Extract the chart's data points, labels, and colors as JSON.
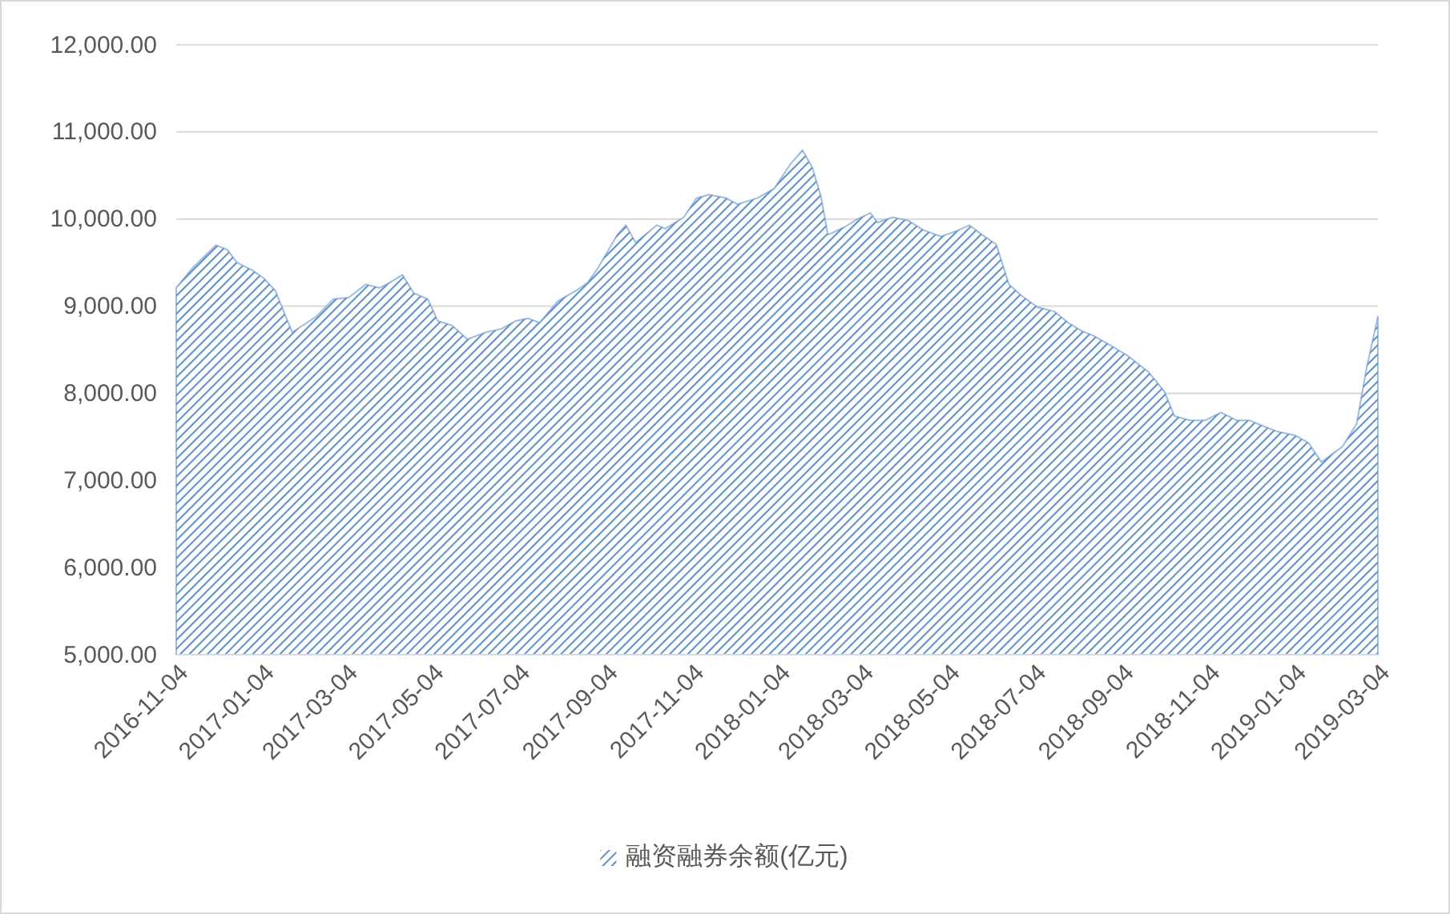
{
  "chart_data": {
    "type": "area",
    "x": [
      "2016-11-04",
      "2016-11-15",
      "2016-12-02",
      "2016-12-10",
      "2016-12-17",
      "2016-12-28",
      "2017-01-05",
      "2017-01-13",
      "2017-01-25",
      "2017-02-11",
      "2017-02-23",
      "2017-03-06",
      "2017-03-18",
      "2017-03-28",
      "2017-04-04",
      "2017-04-13",
      "2017-04-21",
      "2017-05-01",
      "2017-05-08",
      "2017-05-18",
      "2017-05-29",
      "2017-06-11",
      "2017-06-22",
      "2017-07-02",
      "2017-07-11",
      "2017-07-19",
      "2017-08-01",
      "2017-08-14",
      "2017-08-22",
      "2017-08-29",
      "2017-09-12",
      "2017-09-18",
      "2017-09-25",
      "2017-10-10",
      "2017-10-16",
      "2017-10-29",
      "2017-11-07",
      "2017-11-16",
      "2017-11-28",
      "2017-12-06",
      "2017-12-20",
      "2018-01-01",
      "2018-01-12",
      "2018-01-21",
      "2018-01-28",
      "2018-02-03",
      "2018-02-08",
      "2018-02-20",
      "2018-03-01",
      "2018-03-10",
      "2018-03-15",
      "2018-03-26",
      "2018-04-06",
      "2018-04-17",
      "2018-04-29",
      "2018-05-11",
      "2018-05-19",
      "2018-05-28",
      "2018-06-07",
      "2018-06-16",
      "2018-06-25",
      "2018-07-06",
      "2018-07-18",
      "2018-07-28",
      "2018-08-06",
      "2018-08-15",
      "2018-08-29",
      "2018-09-09",
      "2018-09-23",
      "2018-10-04",
      "2018-10-11",
      "2018-10-22",
      "2018-11-02",
      "2018-11-13",
      "2018-11-24",
      "2018-12-03",
      "2018-12-12",
      "2018-12-23",
      "2019-01-04",
      "2019-01-14",
      "2019-01-23",
      "2019-02-07",
      "2019-02-17",
      "2019-02-24",
      "2019-03-04"
    ],
    "series": [
      {
        "name": "融资融券余额(亿元)",
        "color": "#5b8fd4",
        "values": [
          9210,
          9430,
          9700,
          9650,
          9500,
          9410,
          9320,
          9180,
          8700,
          8880,
          9080,
          9100,
          9250,
          9210,
          9270,
          9360,
          9150,
          9080,
          8830,
          8780,
          8620,
          8700,
          8740,
          8830,
          8860,
          8810,
          9060,
          9180,
          9270,
          9430,
          9820,
          9930,
          9730,
          9930,
          9890,
          10020,
          10240,
          10280,
          10240,
          10170,
          10240,
          10350,
          10620,
          10790,
          10590,
          10260,
          9820,
          9910,
          10000,
          10070,
          9960,
          10020,
          9980,
          9870,
          9800,
          9870,
          9930,
          9820,
          9710,
          9250,
          9120,
          8990,
          8940,
          8810,
          8720,
          8660,
          8530,
          8420,
          8240,
          8020,
          7740,
          7690,
          7690,
          7780,
          7690,
          7690,
          7630,
          7560,
          7520,
          7430,
          7210,
          7390,
          7650,
          8290,
          8880
        ]
      }
    ],
    "xlim": [
      "2016-11-04",
      "2019-03-04"
    ],
    "xticks": [
      "2016-11-04",
      "2017-01-04",
      "2017-03-04",
      "2017-05-04",
      "2017-07-04",
      "2017-09-04",
      "2017-11-04",
      "2018-01-04",
      "2018-03-04",
      "2018-05-04",
      "2018-07-04",
      "2018-09-04",
      "2018-11-04",
      "2019-01-04",
      "2019-03-04"
    ],
    "ylim": [
      5000,
      12000
    ],
    "yticks": [
      {
        "value": 5000,
        "label": "5,000.00"
      },
      {
        "value": 6000,
        "label": "6,000.00"
      },
      {
        "value": 7000,
        "label": "7,000.00"
      },
      {
        "value": 8000,
        "label": "8,000.00"
      },
      {
        "value": 9000,
        "label": "9,000.00"
      },
      {
        "value": 10000,
        "label": "10,000.00"
      },
      {
        "value": 11000,
        "label": "11,000.00"
      },
      {
        "value": 12000,
        "label": "12,000.00"
      }
    ],
    "grid": "y",
    "legend": "bottom"
  }
}
